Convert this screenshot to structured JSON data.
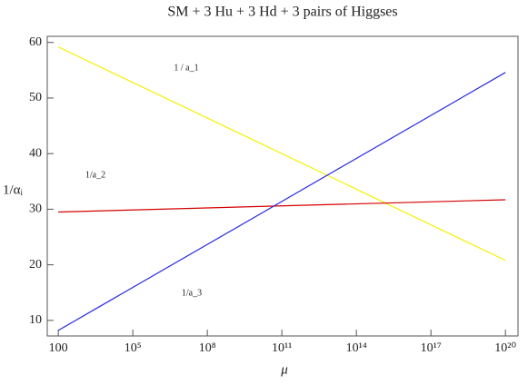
{
  "chart_data": {
    "type": "line",
    "title": "SM + 3 Hu + 3 Hd + 3 pairs of Higgses",
    "xlabel": "μ",
    "ylabel": "1/αᵢ",
    "xscale": "log",
    "x": [
      100,
      1e+20
    ],
    "series": [
      {
        "name": "1 / a_1",
        "color": "#f5f000",
        "values": [
          59.2,
          20.8
        ]
      },
      {
        "name": "1/a_2",
        "color": "#d40000",
        "values": [
          29.5,
          31.7
        ]
      },
      {
        "name": "1/a_3",
        "color": "#2a2ae0",
        "values": [
          8.2,
          54.6
        ]
      }
    ],
    "xlim": [
      36,
      3.2e+20
    ],
    "xticks": [
      100,
      {
        "value": 100000.0,
        "label": "10⁵"
      },
      {
        "value": 100000000.0,
        "label": "10⁸"
      },
      {
        "value": 100000000000.0,
        "label": "10¹¹"
      },
      {
        "value": 100000000000000.0,
        "label": "10¹⁴"
      },
      {
        "value": 1e+17,
        "label": "10¹⁷"
      },
      {
        "value": 1e+20,
        "label": "10²⁰"
      }
    ],
    "ylim": [
      7.2,
      61.1
    ],
    "yticks": [
      10,
      20,
      30,
      40,
      50,
      60
    ]
  }
}
